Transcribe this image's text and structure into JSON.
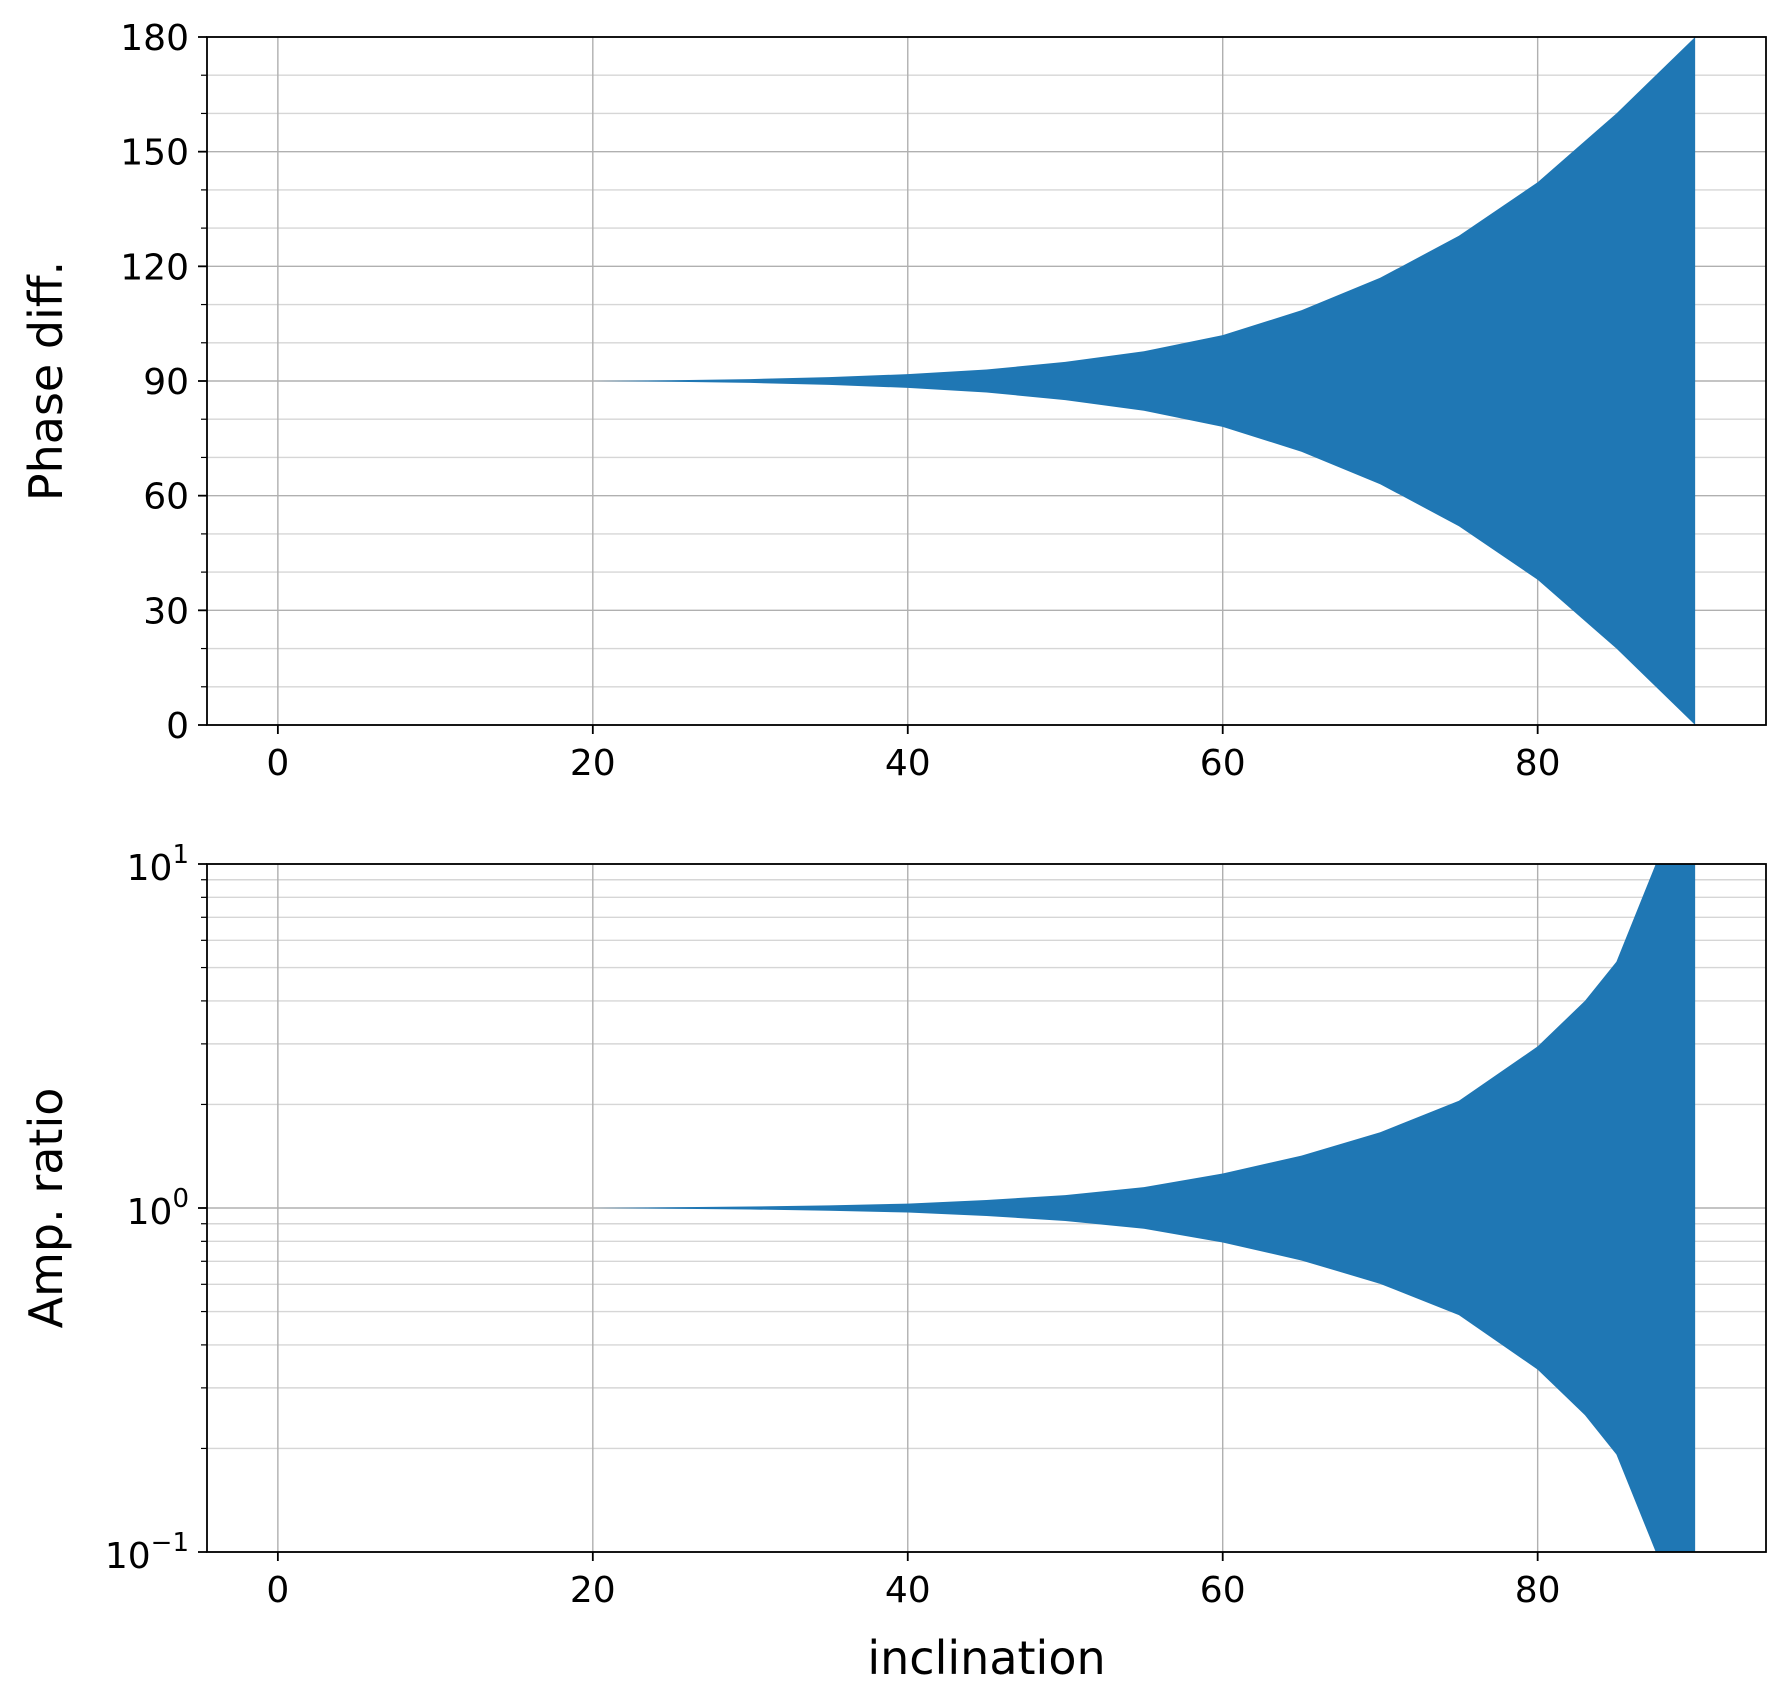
{
  "chart_data": [
    {
      "type": "area",
      "title": "",
      "xlabel": "",
      "ylabel": "Phase diff.",
      "xlim": [
        -4.5,
        94.5
      ],
      "ylim": [
        0,
        180
      ],
      "yscale": "linear",
      "grid": true,
      "xticks": [
        0,
        20,
        40,
        60,
        80
      ],
      "xtick_labels": [
        "0",
        "20",
        "40",
        "60",
        "80"
      ],
      "yticks": [
        0,
        30,
        60,
        90,
        120,
        150,
        180
      ],
      "ytick_labels": [
        "0",
        "30",
        "60",
        "90",
        "120",
        "150",
        "180"
      ],
      "ytick_minor": [
        10,
        20,
        40,
        50,
        70,
        80,
        100,
        110,
        130,
        140,
        160,
        170
      ],
      "fill_color": "#1f77b4",
      "x": [
        0,
        10,
        20,
        25,
        30,
        35,
        40,
        45,
        50,
        55,
        60,
        65,
        70,
        75,
        80,
        85,
        90
      ],
      "upper": [
        90,
        90,
        90,
        90.2,
        90.5,
        91.0,
        91.8,
        93.0,
        95.0,
        97.8,
        102.0,
        108.5,
        117.0,
        128.0,
        142.0,
        160.0,
        180.0
      ],
      "lower": [
        90,
        90,
        90,
        89.8,
        89.5,
        89.0,
        88.2,
        87.0,
        85.0,
        82.2,
        78.0,
        71.5,
        63.0,
        52.0,
        38.0,
        20.0,
        0.0
      ]
    },
    {
      "type": "area",
      "title": "",
      "xlabel": "inclination",
      "ylabel": "Amp. ratio",
      "xlim": [
        -4.5,
        94.5
      ],
      "ylim": [
        0.1,
        10
      ],
      "yscale": "log",
      "grid": true,
      "xticks": [
        0,
        20,
        40,
        60,
        80
      ],
      "xtick_labels": [
        "0",
        "20",
        "40",
        "60",
        "80"
      ],
      "yticks": [
        0.1,
        1,
        10
      ],
      "ytick_labels": [
        {
          "base": "10",
          "exp": "−1"
        },
        {
          "base": "10",
          "exp": "0"
        },
        {
          "base": "10",
          "exp": "1"
        }
      ],
      "ytick_minor": [
        0.2,
        0.3,
        0.4,
        0.5,
        0.6,
        0.7,
        0.8,
        0.9,
        2,
        3,
        4,
        5,
        6,
        7,
        8,
        9
      ],
      "fill_color": "#1f77b4",
      "x": [
        0,
        10,
        20,
        25,
        30,
        35,
        40,
        45,
        50,
        55,
        60,
        65,
        70,
        75,
        80,
        83,
        85,
        87.5,
        90
      ],
      "upper": [
        1,
        1,
        1,
        1.005,
        1.01,
        1.018,
        1.03,
        1.055,
        1.09,
        1.15,
        1.26,
        1.42,
        1.66,
        2.05,
        2.95,
        4.0,
        5.2,
        10.0,
        10.0
      ],
      "lower": [
        1,
        1,
        1,
        0.995,
        0.99,
        0.982,
        0.97,
        0.948,
        0.917,
        0.87,
        0.794,
        0.704,
        0.602,
        0.488,
        0.339,
        0.25,
        0.192,
        0.1,
        0.1
      ]
    }
  ]
}
